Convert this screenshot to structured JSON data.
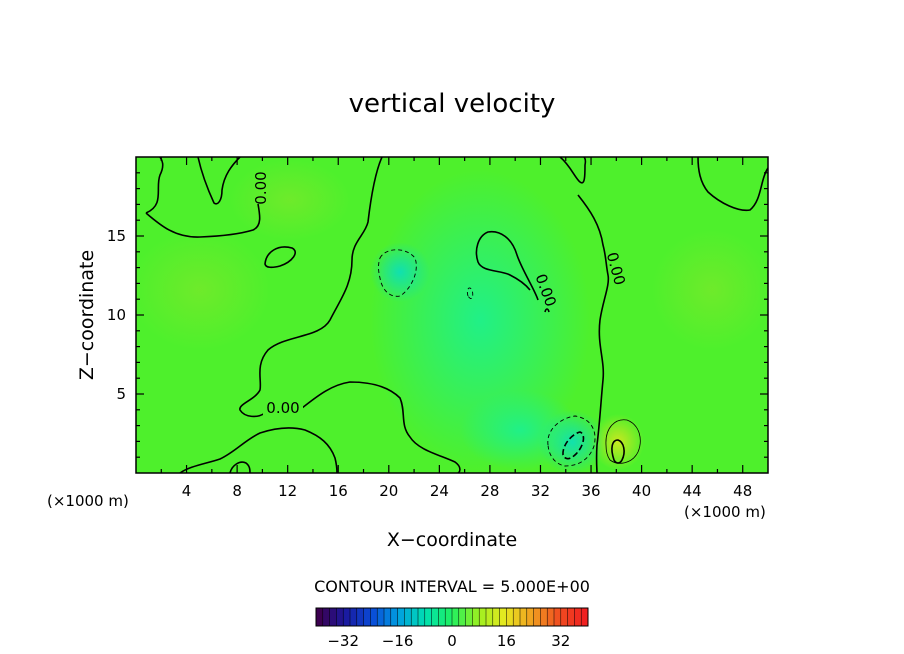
{
  "chart_data": {
    "type": "heatmap",
    "title": "vertical velocity",
    "xlabel": "X−coordinate",
    "ylabel": "Z−coordinate",
    "x_unit": "(×1000 m)",
    "z_unit": "(×1000 m)",
    "xlim": [
      0,
      50
    ],
    "ylim": [
      0,
      20
    ],
    "x_ticks": [
      "4",
      "8",
      "12",
      "16",
      "20",
      "24",
      "28",
      "32",
      "36",
      "40",
      "44",
      "48"
    ],
    "y_ticks": [
      "5",
      "10",
      "15"
    ],
    "contour_interval_text": "CONTOUR INTERVAL = 5.000E+00",
    "contour_labels": [
      "0.00",
      "0.00",
      "0.00",
      "0.00",
      "0.00"
    ],
    "colorbar": {
      "range": [
        -40,
        40
      ],
      "tick_labels": [
        "−32",
        "−16",
        "0",
        "16",
        "32"
      ],
      "colors": [
        "#3c0050",
        "#1a1aa0",
        "#0a4cd8",
        "#00a0e0",
        "#00e0b0",
        "#20f060",
        "#9cf020",
        "#e8e820",
        "#f0a020",
        "#f05020",
        "#f02020"
      ]
    },
    "field_features": [
      {
        "kind": "downdraft",
        "x": 20.5,
        "z": 12.6,
        "value": -5
      },
      {
        "kind": "downdraft",
        "x": 33.8,
        "z": 1.8,
        "value": -10
      },
      {
        "kind": "updraft",
        "x": 38.4,
        "z": 1.6,
        "value": 10
      }
    ]
  }
}
